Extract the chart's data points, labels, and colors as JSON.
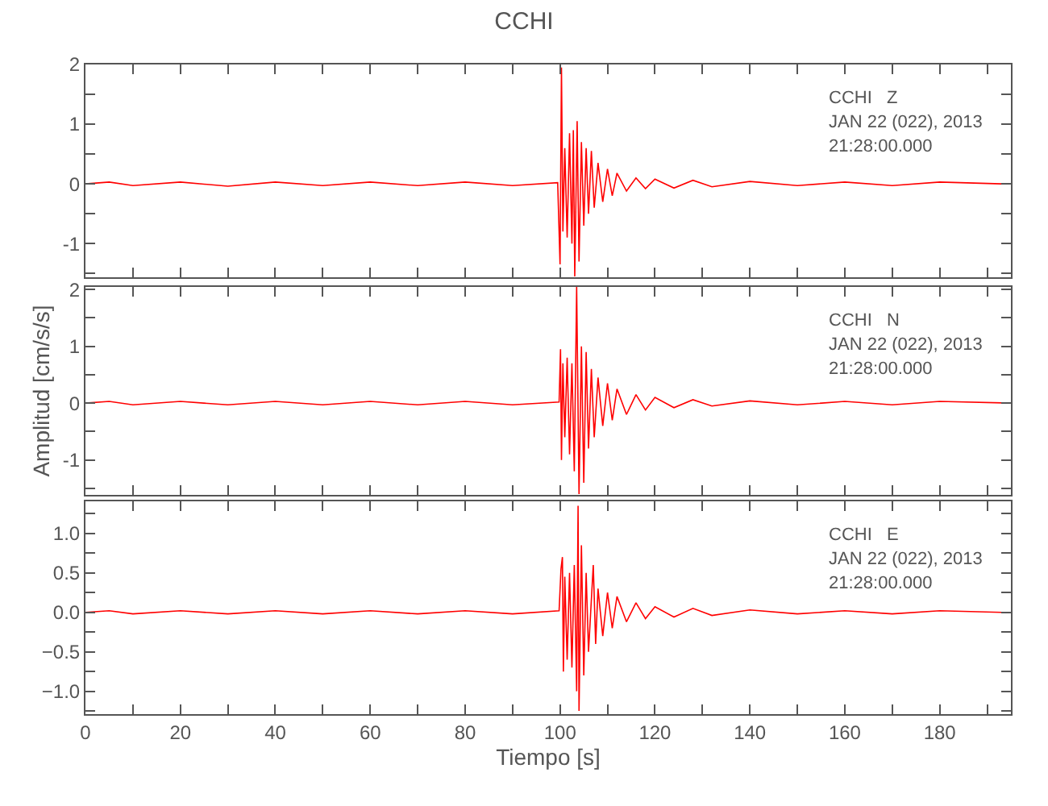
{
  "chart_data": [
    {
      "type": "line",
      "title": "CCHI",
      "annotations": [
        "CCHI   Z",
        "JAN 22 (022), 2013",
        "21:28:00.000"
      ],
      "tick_labels": "y",
      "marker": "none",
      "line_style": "solid",
      "xlim": [
        0,
        195
      ],
      "xticks": [
        0,
        {
          "value": 10,
          "label": null
        },
        20,
        {
          "value": 30,
          "label": null
        },
        40,
        {
          "value": 50,
          "label": null
        },
        60,
        {
          "value": 70,
          "label": null
        },
        80,
        {
          "value": 90,
          "label": null
        },
        100,
        {
          "value": 110,
          "label": null
        },
        120,
        {
          "value": 130,
          "label": null
        },
        140,
        {
          "value": 150,
          "label": null
        },
        160,
        {
          "value": 170,
          "label": null
        },
        180,
        {
          "value": 190,
          "label": null
        }
      ],
      "ylim": [
        -1.57,
        2
      ],
      "yticks": [
        {
          "value": -1.5,
          "label": null
        },
        -1,
        {
          "value": -0.5,
          "label": null
        },
        0,
        {
          "value": 0.5,
          "label": null
        },
        1,
        {
          "value": 1.5,
          "label": null
        },
        2
      ],
      "series": [
        {
          "color": "#ff0000",
          "x": [
            0,
            5,
            10,
            20,
            30,
            40,
            50,
            60,
            70,
            80,
            90,
            99.5,
            100.0,
            100.3,
            100.6,
            101.0,
            101.5,
            102.0,
            102.5,
            102.8,
            103.1,
            103.6,
            104.0,
            104.5,
            105.0,
            105.5,
            106.0,
            106.6,
            107.2,
            108,
            109,
            110,
            111,
            112,
            114,
            116,
            118,
            120,
            124,
            128,
            132,
            140,
            150,
            160,
            170,
            180,
            193
          ],
          "values": [
            0,
            0.03,
            -0.03,
            0.03,
            -0.04,
            0.03,
            -0.03,
            0.03,
            -0.03,
            0.03,
            -0.03,
            0.02,
            -1.35,
            1.95,
            -0.8,
            0.6,
            -0.9,
            0.85,
            -1.0,
            0.9,
            -1.55,
            1.05,
            -1.3,
            0.7,
            -0.7,
            0.6,
            -0.5,
            0.55,
            -0.4,
            0.35,
            -0.3,
            0.25,
            -0.2,
            0.18,
            -0.12,
            0.1,
            -0.08,
            0.08,
            -0.07,
            0.06,
            -0.05,
            0.04,
            -0.03,
            0.03,
            -0.03,
            0.03,
            0
          ]
        }
      ]
    },
    {
      "type": "line",
      "ylabel": "Amplitud [cm/s/s]",
      "annotations": [
        "CCHI   N",
        "JAN 22 (022), 2013",
        "21:28:00.000"
      ],
      "tick_labels": "y",
      "marker": "none",
      "line_style": "solid",
      "xlim": [
        0,
        195
      ],
      "xticks": [
        0,
        {
          "value": 10,
          "label": null
        },
        20,
        {
          "value": 30,
          "label": null
        },
        40,
        {
          "value": 50,
          "label": null
        },
        60,
        {
          "value": 70,
          "label": null
        },
        80,
        {
          "value": 90,
          "label": null
        },
        100,
        {
          "value": 110,
          "label": null
        },
        120,
        {
          "value": 130,
          "label": null
        },
        140,
        {
          "value": 150,
          "label": null
        },
        160,
        {
          "value": 170,
          "label": null
        },
        180,
        {
          "value": 190,
          "label": null
        }
      ],
      "ylim": [
        -1.62,
        2.05
      ],
      "yticks": [
        {
          "value": -1.5,
          "label": null
        },
        -1,
        {
          "value": -0.5,
          "label": null
        },
        0,
        {
          "value": 0.5,
          "label": null
        },
        1,
        {
          "value": 1.5,
          "label": null
        },
        2
      ],
      "series": [
        {
          "color": "#ff0000",
          "x": [
            0,
            5,
            10,
            20,
            30,
            40,
            50,
            60,
            70,
            80,
            90,
            99.8,
            100.1,
            100.3,
            100.6,
            101.0,
            101.5,
            102.0,
            102.5,
            103.0,
            103.5,
            104.0,
            104.5,
            105.0,
            105.5,
            106.0,
            106.6,
            107.2,
            108,
            109,
            110,
            111,
            112,
            114,
            116,
            118,
            120,
            124,
            128,
            132,
            140,
            150,
            160,
            170,
            180,
            195
          ],
          "values": [
            0,
            0.03,
            -0.03,
            0.03,
            -0.03,
            0.03,
            -0.03,
            0.03,
            -0.03,
            0.03,
            -0.03,
            0.02,
            0.95,
            -1.0,
            0.7,
            -0.6,
            0.8,
            -0.9,
            0.7,
            -1.2,
            2.05,
            -1.6,
            1.0,
            -1.4,
            0.9,
            -0.8,
            0.6,
            -0.6,
            0.45,
            -0.4,
            0.35,
            -0.3,
            0.25,
            -0.2,
            0.15,
            -0.12,
            0.1,
            -0.08,
            0.06,
            -0.05,
            0.04,
            -0.03,
            0.03,
            -0.03,
            0.03,
            0
          ]
        }
      ]
    },
    {
      "type": "line",
      "xlabel": "Tiempo [s]",
      "annotations": [
        "CCHI   E",
        "JAN 22 (022), 2013",
        "21:28:00.000"
      ],
      "marker": "none",
      "line_style": "solid",
      "xlim": [
        0,
        195
      ],
      "xticks": [
        0,
        {
          "value": 10,
          "label": null
        },
        20,
        {
          "value": 30,
          "label": null
        },
        40,
        {
          "value": 50,
          "label": null
        },
        60,
        {
          "value": 70,
          "label": null
        },
        80,
        {
          "value": 90,
          "label": null
        },
        100,
        {
          "value": 110,
          "label": null
        },
        120,
        {
          "value": 130,
          "label": null
        },
        140,
        {
          "value": 150,
          "label": null
        },
        160,
        {
          "value": 170,
          "label": null
        },
        180,
        {
          "value": 190,
          "label": null
        }
      ],
      "ylim": [
        -1.29,
        1.41
      ],
      "yticks": [
        {
          "value": -1.25,
          "label": null
        },
        {
          "value": -1,
          "label": "−1.0"
        },
        {
          "value": -0.75,
          "label": null
        },
        {
          "value": -0.5,
          "label": "−0.5"
        },
        {
          "value": -0.25,
          "label": null
        },
        {
          "value": 0,
          "label": "0.0"
        },
        {
          "value": 0.25,
          "label": null
        },
        {
          "value": 0.5,
          "label": "0.5"
        },
        {
          "value": 0.75,
          "label": null
        },
        {
          "value": 1,
          "label": "1.0"
        },
        {
          "value": 1.25,
          "label": null
        }
      ],
      "series": [
        {
          "color": "#ff0000",
          "x": [
            0,
            5,
            10,
            20,
            30,
            40,
            50,
            60,
            70,
            80,
            90,
            99.8,
            100.2,
            100.5,
            100.7,
            101.0,
            101.5,
            102.0,
            102.5,
            103.0,
            103.5,
            103.8,
            104.0,
            104.5,
            105.0,
            105.5,
            106.0,
            107.0,
            107.5,
            108,
            109,
            110,
            111,
            112,
            114,
            116,
            118,
            120,
            124,
            128,
            132,
            140,
            150,
            160,
            170,
            180,
            193
          ],
          "values": [
            0,
            0.02,
            -0.02,
            0.02,
            -0.02,
            0.02,
            -0.02,
            0.02,
            -0.02,
            0.02,
            -0.02,
            0.02,
            0.55,
            0.7,
            -0.75,
            0.45,
            -0.6,
            0.5,
            -0.7,
            0.6,
            -1.0,
            1.35,
            -1.25,
            0.85,
            -0.8,
            0.5,
            -0.5,
            0.6,
            -0.4,
            0.3,
            -0.3,
            0.25,
            -0.2,
            0.2,
            -0.12,
            0.12,
            -0.08,
            0.07,
            -0.06,
            0.05,
            -0.04,
            0.03,
            -0.02,
            0.02,
            -0.02,
            0.02,
            0
          ]
        }
      ]
    }
  ]
}
